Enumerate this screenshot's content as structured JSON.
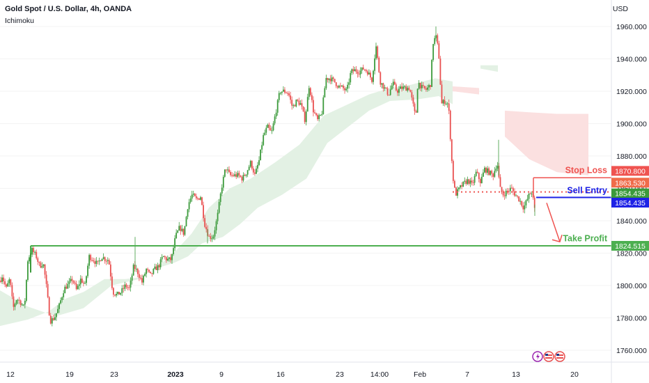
{
  "header": {
    "title": "Gold Spot / U.S. Dollar, 4h, OANDA",
    "indicator": "Ichimoku"
  },
  "axis": {
    "currency": "USD"
  },
  "colors": {
    "up": "#3b9a3b",
    "down": "#e94f4f",
    "cloud_bull": "#e3f1e4",
    "cloud_bear": "#fbe0e0",
    "stop": "#ef5350",
    "entry": "#1e22e6",
    "profit": "#4caf50",
    "grid": "#f3f3f3",
    "axis_text": "#131722"
  },
  "chart_data": {
    "type": "candlestick",
    "y_ticks": [
      "1760.000",
      "1780.000",
      "1800.000",
      "1820.000",
      "1840.000",
      "1860.000",
      "1880.000",
      "1900.000",
      "1920.000",
      "1940.000",
      "1960.000"
    ],
    "x_ticks": [
      "12",
      "19",
      "23",
      "2023",
      "9",
      "16",
      "23",
      "14:00",
      "Feb",
      "7",
      "13",
      "20"
    ],
    "ylim": [
      1754,
      1966
    ],
    "path": [
      [
        0,
        1803
      ],
      [
        3,
        1806
      ],
      [
        9,
        1798
      ],
      [
        14,
        1804
      ],
      [
        19,
        1786
      ],
      [
        24,
        1792
      ],
      [
        29,
        1790
      ],
      [
        35,
        1786
      ],
      [
        40,
        1816
      ],
      [
        46,
        1822
      ],
      [
        52,
        1818
      ],
      [
        57,
        1812
      ],
      [
        62,
        1814
      ],
      [
        66,
        1802
      ],
      [
        72,
        1778
      ],
      [
        78,
        1780
      ],
      [
        84,
        1786
      ],
      [
        92,
        1798
      ],
      [
        99,
        1801
      ],
      [
        104,
        1804
      ],
      [
        110,
        1797
      ],
      [
        116,
        1804
      ],
      [
        122,
        1800
      ],
      [
        128,
        1818
      ],
      [
        134,
        1816
      ],
      [
        140,
        1813
      ],
      [
        146,
        1818
      ],
      [
        152,
        1816
      ],
      [
        156,
        1816
      ],
      [
        162,
        1796
      ],
      [
        168,
        1794
      ],
      [
        174,
        1796
      ],
      [
        180,
        1800
      ],
      [
        186,
        1798
      ],
      [
        192,
        1812
      ],
      [
        198,
        1808
      ],
      [
        204,
        1802
      ],
      [
        210,
        1810
      ],
      [
        216,
        1806
      ],
      [
        222,
        1810
      ],
      [
        228,
        1812
      ],
      [
        234,
        1818
      ],
      [
        240,
        1816
      ],
      [
        246,
        1816
      ],
      [
        252,
        1830
      ],
      [
        258,
        1836
      ],
      [
        264,
        1832
      ],
      [
        270,
        1850
      ],
      [
        276,
        1856
      ],
      [
        282,
        1853
      ],
      [
        288,
        1855
      ],
      [
        294,
        1838
      ],
      [
        300,
        1830
      ],
      [
        306,
        1830
      ],
      [
        312,
        1842
      ],
      [
        318,
        1860
      ],
      [
        324,
        1873
      ],
      [
        330,
        1868
      ],
      [
        336,
        1868
      ],
      [
        342,
        1868
      ],
      [
        348,
        1866
      ],
      [
        354,
        1870
      ],
      [
        360,
        1876
      ],
      [
        366,
        1868
      ],
      [
        372,
        1877
      ],
      [
        378,
        1892
      ],
      [
        384,
        1898
      ],
      [
        390,
        1894
      ],
      [
        396,
        1907
      ],
      [
        402,
        1920
      ],
      [
        408,
        1920
      ],
      [
        414,
        1919
      ],
      [
        420,
        1910
      ],
      [
        426,
        1914
      ],
      [
        432,
        1912
      ],
      [
        438,
        1902
      ],
      [
        444,
        1924
      ],
      [
        450,
        1908
      ],
      [
        456,
        1902
      ],
      [
        462,
        1906
      ],
      [
        468,
        1928
      ],
      [
        474,
        1928
      ],
      [
        480,
        1926
      ],
      [
        486,
        1923
      ],
      [
        492,
        1922
      ],
      [
        498,
        1920
      ],
      [
        504,
        1932
      ],
      [
        510,
        1933
      ],
      [
        516,
        1932
      ],
      [
        522,
        1934
      ],
      [
        528,
        1932
      ],
      [
        534,
        1927
      ],
      [
        540,
        1948
      ],
      [
        546,
        1926
      ],
      [
        552,
        1922
      ],
      [
        558,
        1918
      ],
      [
        564,
        1925
      ],
      [
        570,
        1920
      ],
      [
        576,
        1922
      ],
      [
        582,
        1922
      ],
      [
        588,
        1922
      ],
      [
        594,
        1910
      ],
      [
        597,
        1903
      ],
      [
        600,
        1926
      ],
      [
        606,
        1922
      ],
      [
        612,
        1921
      ],
      [
        618,
        1924
      ],
      [
        622,
        1950
      ],
      [
        626,
        1954
      ],
      [
        630,
        1944
      ],
      [
        634,
        1912
      ],
      [
        638,
        1914
      ],
      [
        644,
        1912
      ],
      [
        650,
        1868
      ],
      [
        654,
        1856
      ],
      [
        660,
        1860
      ],
      [
        666,
        1863
      ],
      [
        672,
        1865
      ],
      [
        678,
        1862
      ],
      [
        684,
        1870
      ],
      [
        690,
        1864
      ],
      [
        696,
        1872
      ],
      [
        702,
        1870
      ],
      [
        708,
        1868
      ],
      [
        714,
        1876
      ],
      [
        718,
        1860
      ],
      [
        722,
        1856
      ],
      [
        728,
        1858
      ],
      [
        734,
        1860
      ],
      [
        740,
        1856
      ],
      [
        746,
        1853
      ],
      [
        752,
        1848
      ],
      [
        756,
        1852
      ],
      [
        760,
        1856
      ],
      [
        764,
        1858
      ],
      [
        768,
        1846
      ]
    ],
    "cloud_bull": [
      [
        [
          0,
          1797
        ],
        [
          40,
          1787
        ],
        [
          80,
          1781
        ],
        [
          120,
          1786
        ],
        [
          160,
          1800
        ],
        [
          200,
          1804
        ],
        [
          245,
          1818
        ],
        [
          275,
          1832
        ],
        [
          300,
          1848
        ],
        [
          330,
          1860
        ],
        [
          360,
          1866
        ],
        [
          395,
          1876
        ],
        [
          430,
          1887
        ],
        [
          465,
          1905
        ],
        [
          500,
          1912
        ],
        [
          530,
          1918
        ],
        [
          560,
          1922
        ],
        [
          590,
          1924
        ],
        [
          625,
          1928
        ],
        [
          650,
          1926
        ]
      ],
      [
        [
          650,
          1912
        ],
        [
          630,
          1917
        ],
        [
          600,
          1915
        ],
        [
          560,
          1914
        ],
        [
          530,
          1908
        ],
        [
          500,
          1898
        ],
        [
          470,
          1888
        ],
        [
          440,
          1866
        ],
        [
          405,
          1856
        ],
        [
          370,
          1848
        ],
        [
          345,
          1838
        ],
        [
          320,
          1830
        ],
        [
          290,
          1826
        ],
        [
          270,
          1818
        ],
        [
          250,
          1814
        ],
        [
          220,
          1810
        ],
        [
          200,
          1805
        ],
        [
          180,
          1804
        ],
        [
          150,
          1804
        ],
        [
          120,
          1796
        ],
        [
          95,
          1792
        ],
        [
          70,
          1784
        ],
        [
          40,
          1779
        ],
        [
          0,
          1775
        ]
      ]
    ],
    "cloud_bull_top": [
      [
        690,
        1936
      ],
      [
        715,
        1936
      ],
      [
        715,
        1932
      ],
      [
        690,
        1934
      ]
    ],
    "cloud_bear": [
      [
        [
          725,
          1908
        ],
        [
          760,
          1907
        ],
        [
          800,
          1906
        ],
        [
          845,
          1906
        ],
        [
          845,
          1868
        ],
        [
          800,
          1870
        ],
        [
          760,
          1878
        ],
        [
          740,
          1886
        ],
        [
          725,
          1892
        ]
      ]
    ],
    "cloud_bear_small": [
      [
        [
          650,
          1923
        ],
        [
          688,
          1922
        ],
        [
          688,
          1918
        ],
        [
          650,
          1920
        ]
      ]
    ],
    "levels": [
      {
        "name": "Stop Loss",
        "value": 1863.53,
        "value_label": "1863.530",
        "aux_label": "1870.800",
        "x0": 766,
        "x1": 878,
        "color": "#ef5350"
      },
      {
        "name": "Sell Entry",
        "value": 1854.435,
        "value_label": "1854.435",
        "aux_label": "1854.435",
        "x0": 770,
        "x1": 878,
        "color": "#1e22e6"
      },
      {
        "name": "Take Profit",
        "value": 1824.515,
        "value_label": "1824.515",
        "x0": 44,
        "x1": 878,
        "color": "#4caf50"
      }
    ],
    "dotted_level": {
      "value": 1857.8,
      "x0": 650,
      "x1": 878
    },
    "start_marker_x": 44,
    "arrow": {
      "from": [
        785,
        1851
      ],
      "to": [
        804,
        1827
      ]
    }
  }
}
